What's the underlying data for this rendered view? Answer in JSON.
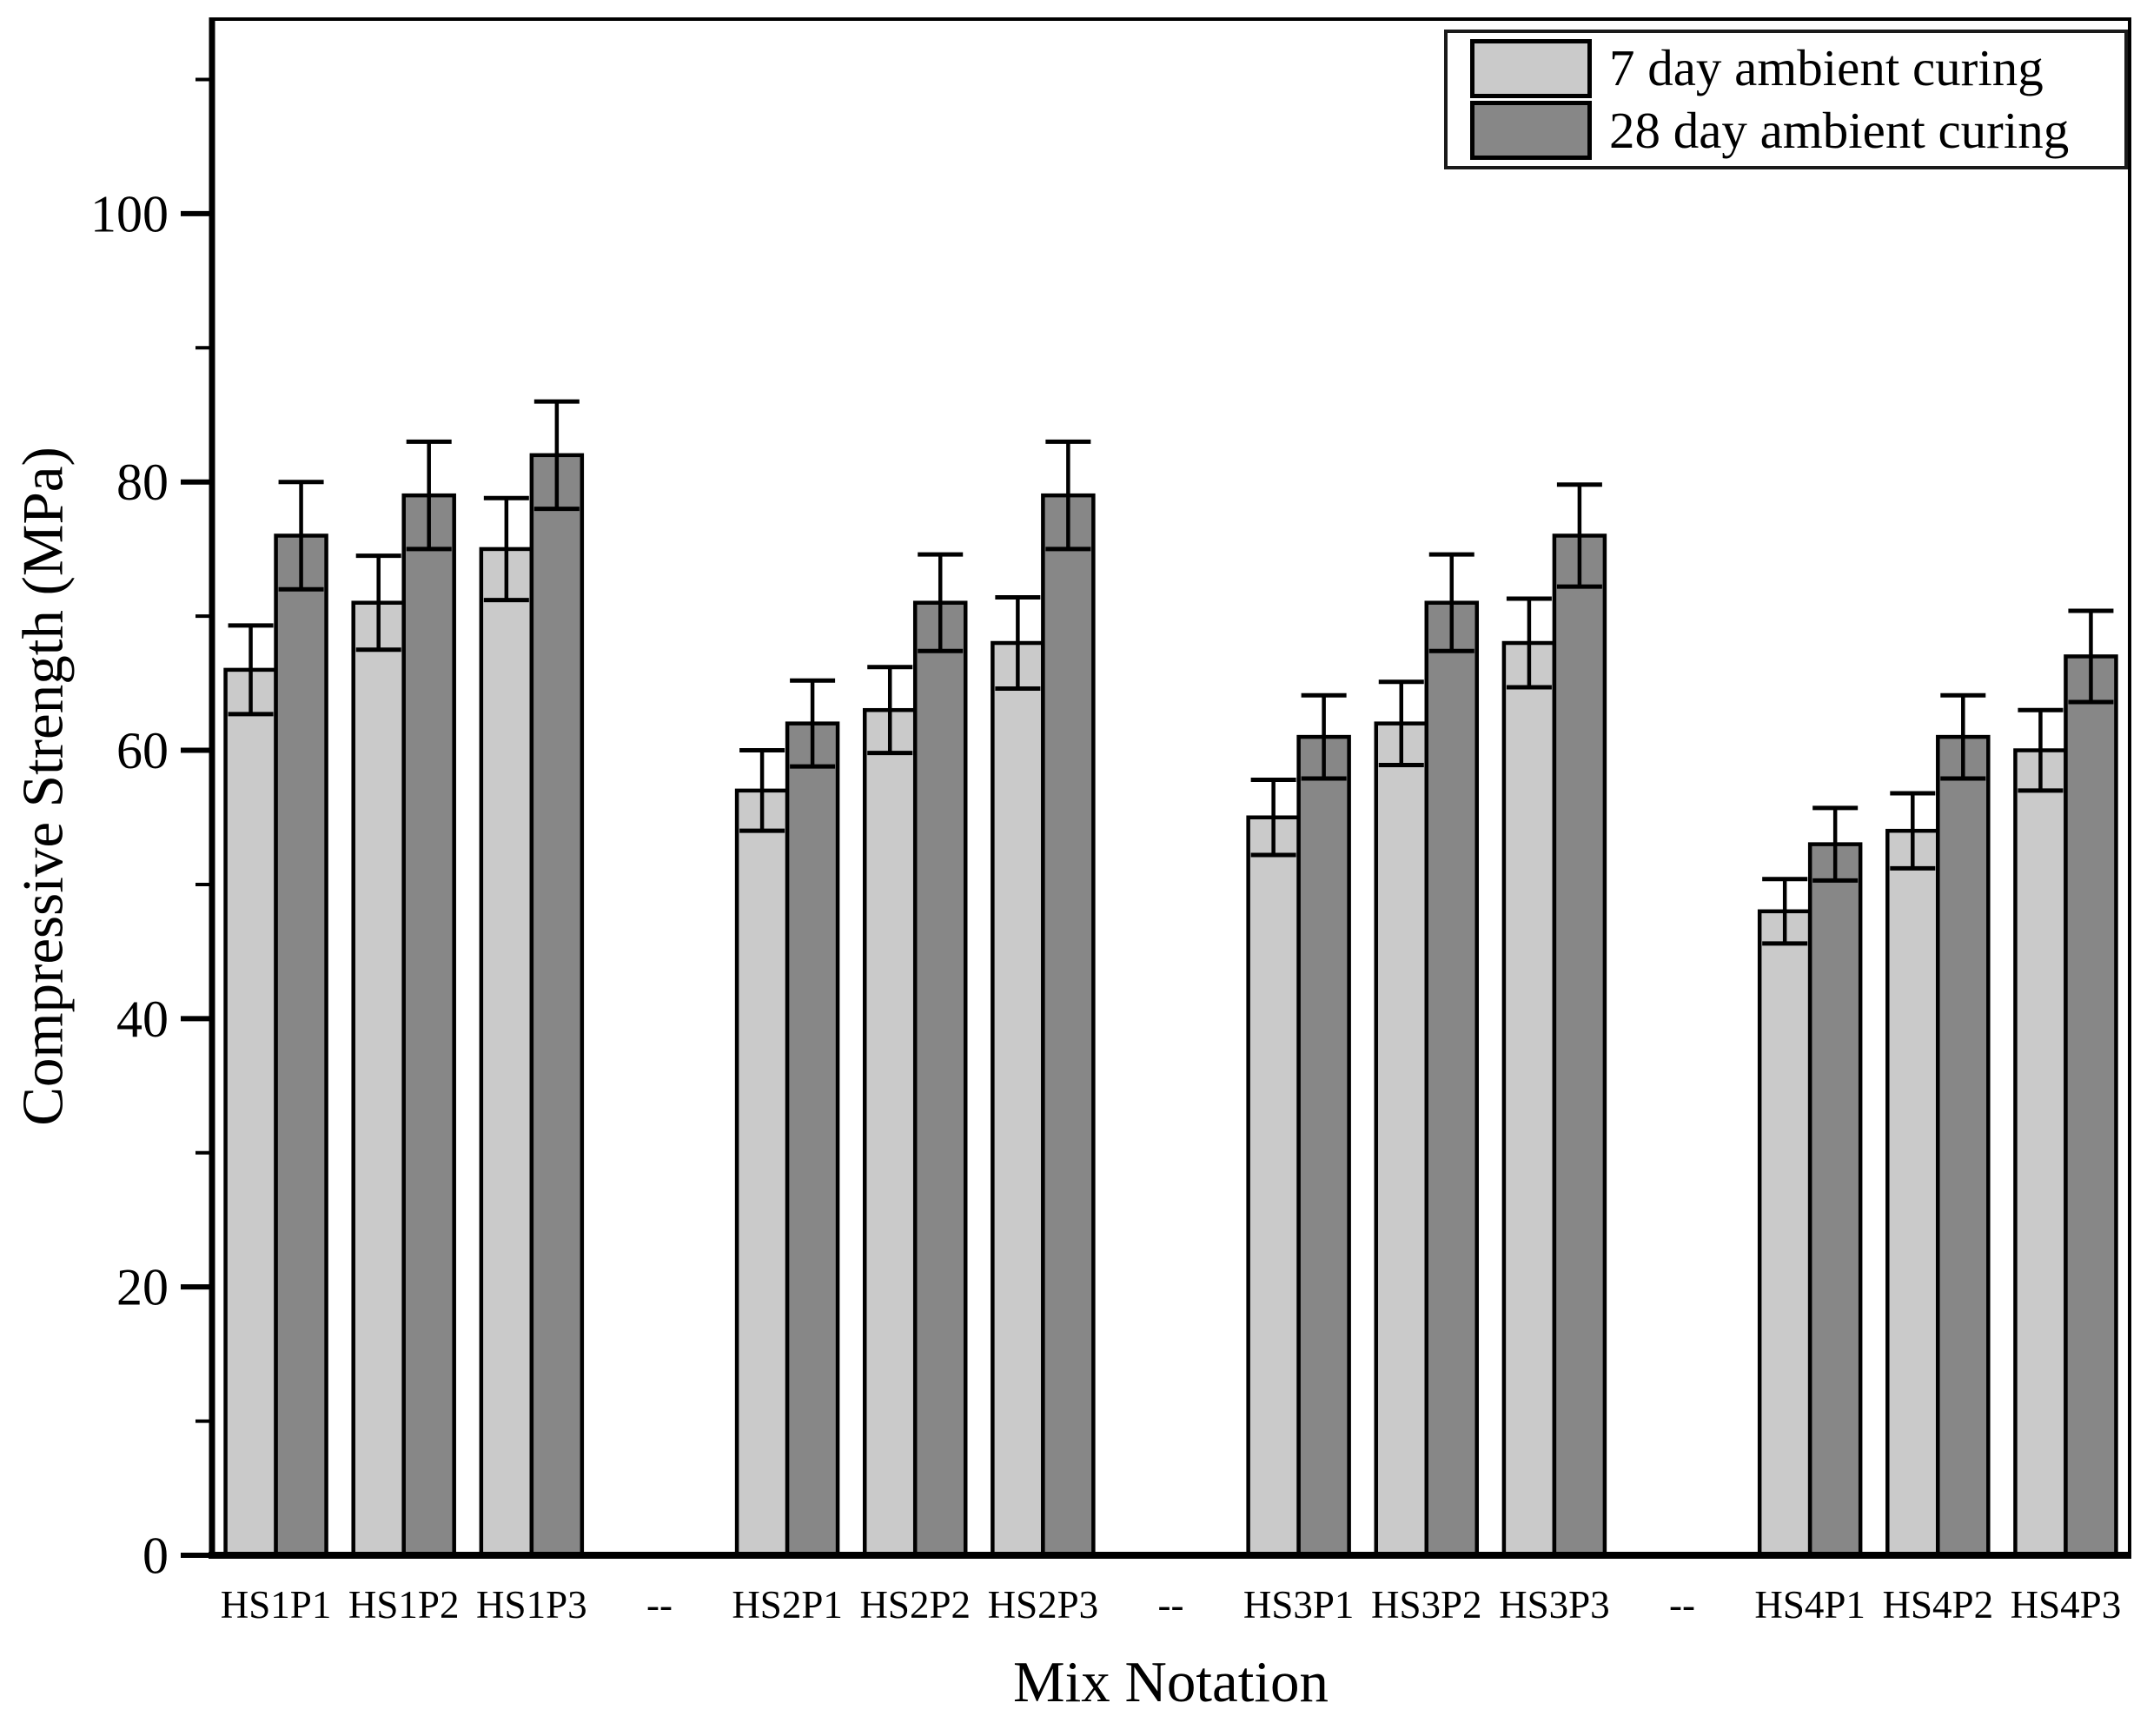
{
  "figure": {
    "background": "#ffffff",
    "frame_color": "#000000",
    "text_color": "#000000"
  },
  "legend": {
    "position": "top-right",
    "items": [
      {
        "label": "7 day ambient curing",
        "color": "#cacaca"
      },
      {
        "label": "28 day ambient curing",
        "color": "#878787"
      }
    ]
  },
  "chart_data": {
    "type": "bar",
    "title": "",
    "xlabel": "Mix Notation",
    "ylabel": "Compressive Strength (MPa)",
    "ylim": [
      0,
      114.5
    ],
    "y_major_ticks": [
      0,
      20,
      40,
      60,
      80,
      100
    ],
    "y_minor_ticks": [
      10,
      30,
      50,
      70,
      90,
      110
    ],
    "grid": false,
    "error_bars": true,
    "bar_outline_color": "#000000",
    "categories": [
      "HS1P1",
      "HS1P2",
      "HS1P3",
      "--",
      "HS2P1",
      "HS2P2",
      "HS2P3",
      "--",
      "HS3P1",
      "HS3P2",
      "HS3P3",
      "--",
      "HS4P1",
      "HS4P2",
      "HS4P3"
    ],
    "series": [
      {
        "name": "7 day ambient curing",
        "color": "#cacaca",
        "values": [
          66,
          71,
          75,
          null,
          57,
          63,
          68,
          null,
          55,
          62,
          68,
          null,
          48,
          54,
          60
        ],
        "errors": [
          3.3,
          3.5,
          3.8,
          null,
          3.0,
          3.2,
          3.4,
          null,
          2.8,
          3.1,
          3.3,
          null,
          2.4,
          2.8,
          3.0
        ]
      },
      {
        "name": "28 day ambient curing",
        "color": "#878787",
        "values": [
          76,
          79,
          82,
          null,
          62,
          71,
          79,
          null,
          61,
          71,
          76,
          null,
          53,
          61,
          67
        ],
        "errors": [
          4.0,
          4.0,
          4.0,
          null,
          3.2,
          3.6,
          4.0,
          null,
          3.1,
          3.6,
          3.8,
          null,
          2.7,
          3.1,
          3.4
        ]
      }
    ]
  }
}
